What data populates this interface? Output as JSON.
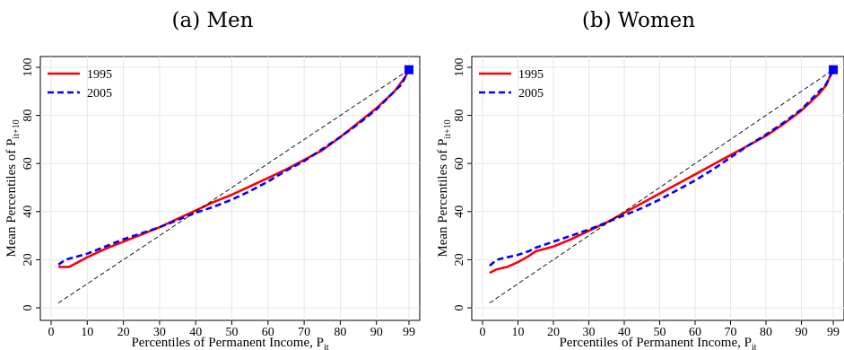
{
  "chart_data": [
    {
      "type": "line",
      "title": "(a) Men",
      "xlabel": {
        "main": "Percentiles of Permanent Income, P",
        "sub": "it"
      },
      "ylabel": {
        "main": "Mean Percentiles of P",
        "sub": "it+10"
      },
      "xlim": [
        0,
        100
      ],
      "ylim": [
        0,
        100
      ],
      "xticks": [
        0,
        10,
        20,
        30,
        40,
        50,
        60,
        70,
        80,
        90,
        99
      ],
      "yticks": [
        0,
        20,
        40,
        60,
        80,
        100
      ],
      "grid": true,
      "legend": "top-left",
      "series": [
        {
          "name": "1995",
          "color": "#ff0000",
          "dash": "solid",
          "x": [
            2,
            5,
            10,
            15,
            20,
            25,
            30,
            35,
            40,
            45,
            50,
            55,
            60,
            65,
            70,
            75,
            80,
            85,
            90,
            95,
            97,
            98,
            99
          ],
          "values": [
            17,
            17,
            21,
            24.5,
            27.5,
            30.5,
            33.5,
            37,
            40.5,
            44,
            47,
            50.5,
            54,
            57.5,
            61.5,
            65.5,
            71,
            77,
            83,
            90,
            94,
            96,
            99
          ]
        },
        {
          "name": "2005",
          "color": "#0000ff",
          "dash": "dashed",
          "x": [
            2,
            4,
            10,
            15,
            20,
            25,
            30,
            35,
            40,
            45,
            50,
            55,
            60,
            65,
            70,
            75,
            80,
            85,
            90,
            95,
            97,
            98,
            99
          ],
          "values": [
            18,
            20,
            22.5,
            25.5,
            28.5,
            31,
            33.5,
            36.5,
            39.5,
            42,
            45,
            48.5,
            52.5,
            57,
            61,
            66,
            71,
            76.5,
            82.5,
            90,
            93,
            96,
            99
          ]
        },
        {
          "name": "",
          "color": "#000000",
          "dash": "reference",
          "x": [
            2,
            99
          ],
          "values": [
            2,
            99
          ]
        }
      ],
      "marker": {
        "x": 99,
        "y": 99,
        "color": "#0000ff"
      }
    },
    {
      "type": "line",
      "title": "(b) Women",
      "xlabel": {
        "main": "Percentiles of Permanent Income, P",
        "sub": "it"
      },
      "ylabel": {
        "main": "Mean Percentiles of P",
        "sub": "it+10"
      },
      "xlim": [
        0,
        100
      ],
      "ylim": [
        0,
        100
      ],
      "xticks": [
        0,
        10,
        20,
        30,
        40,
        50,
        60,
        70,
        80,
        90,
        99
      ],
      "yticks": [
        0,
        20,
        40,
        60,
        80,
        100
      ],
      "grid": true,
      "legend": "top-left",
      "series": [
        {
          "name": "1995",
          "color": "#ff0000",
          "dash": "solid",
          "x": [
            2,
            4,
            7,
            10,
            13,
            15,
            20,
            25,
            30,
            35,
            40,
            45,
            50,
            55,
            60,
            65,
            70,
            75,
            80,
            85,
            90,
            95,
            97,
            98,
            99
          ],
          "values": [
            14.5,
            16,
            17,
            19,
            21.5,
            23.5,
            25.5,
            28.5,
            32,
            35.5,
            39.5,
            43.5,
            47.5,
            51.5,
            55.5,
            59.5,
            63.5,
            67.5,
            71.5,
            76.5,
            82,
            89,
            92.5,
            96,
            99
          ]
        },
        {
          "name": "2005",
          "color": "#0000ff",
          "dash": "dashed",
          "x": [
            2,
            4,
            7,
            10,
            13,
            15,
            20,
            25,
            30,
            35,
            40,
            45,
            50,
            55,
            60,
            65,
            70,
            75,
            80,
            85,
            90,
            95,
            97,
            98,
            99
          ],
          "values": [
            17.5,
            20,
            21,
            22,
            23.5,
            25,
            27.5,
            30,
            32.5,
            35.5,
            38.5,
            41.5,
            45,
            49,
            53,
            57.5,
            62.5,
            67.5,
            72,
            77,
            82.5,
            90,
            93,
            96,
            99
          ]
        },
        {
          "name": "",
          "color": "#000000",
          "dash": "reference",
          "x": [
            2,
            99
          ],
          "values": [
            2,
            99
          ]
        }
      ],
      "marker": {
        "x": 99,
        "y": 99,
        "color": "#0000ff"
      }
    }
  ]
}
